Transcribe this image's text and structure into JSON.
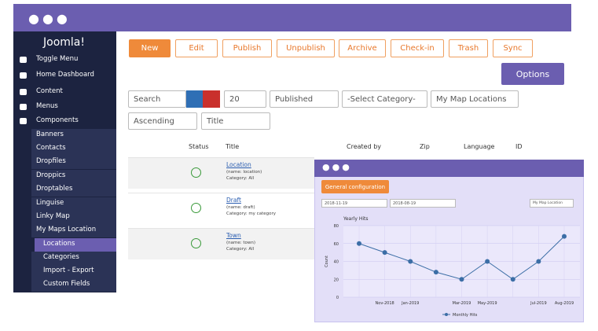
{
  "sidebar": {
    "brand": "Joomla!",
    "items": [
      "Toggle Menu",
      "Home Dashboard",
      "Content",
      "Menus",
      "Components",
      "Banners",
      "Contacts",
      "Dropfiles",
      "Droppics",
      "Droptables",
      "Linguise",
      "Linky Map",
      "My Maps Location",
      "Locations",
      "Categories",
      "Import - Export",
      "Custom Fields"
    ]
  },
  "toolbar": {
    "buttons": [
      "New",
      "Edit",
      "Publish",
      "Unpublish",
      "Archive",
      "Check-in",
      "Trash",
      "Sync"
    ],
    "options": "Options"
  },
  "filters": {
    "search": "Search",
    "limit": "20",
    "status": "Published",
    "category": "-Select Category-",
    "map": "My Map Locations",
    "order": "Ascending",
    "field": "Title"
  },
  "table": {
    "headers": [
      "Status",
      "Title",
      "Created by",
      "Zip",
      "Language",
      "ID"
    ],
    "rows": [
      {
        "title": "Location",
        "alias": "(name: location)",
        "category": "Category: All"
      },
      {
        "title": "Draft",
        "alias": "(name: draft)",
        "category": "Category: my category"
      },
      {
        "title": "Town",
        "alias": "(name: town)",
        "category": "Category: All"
      }
    ]
  },
  "popup": {
    "button": "General configuration",
    "date_from": "2018-11-19",
    "date_to": "2018-08-19",
    "location": "My Map Location"
  },
  "chart_data": {
    "type": "line",
    "title": "Yearly Hits",
    "y_label": "Count",
    "categories": [
      null,
      "Nov-2018",
      "Jan-2019",
      null,
      "Mar-2019",
      "May-2019",
      null,
      "Jul-2019",
      "Aug-2019"
    ],
    "series": [
      {
        "name": "Monthly Hits",
        "color": "#3c6ea6",
        "values": [
          60,
          50,
          40,
          28,
          20,
          40,
          20,
          40,
          68
        ]
      }
    ],
    "ylim": [
      0,
      80
    ],
    "yticks": [
      0,
      20,
      40,
      60,
      80
    ],
    "grid": true
  }
}
